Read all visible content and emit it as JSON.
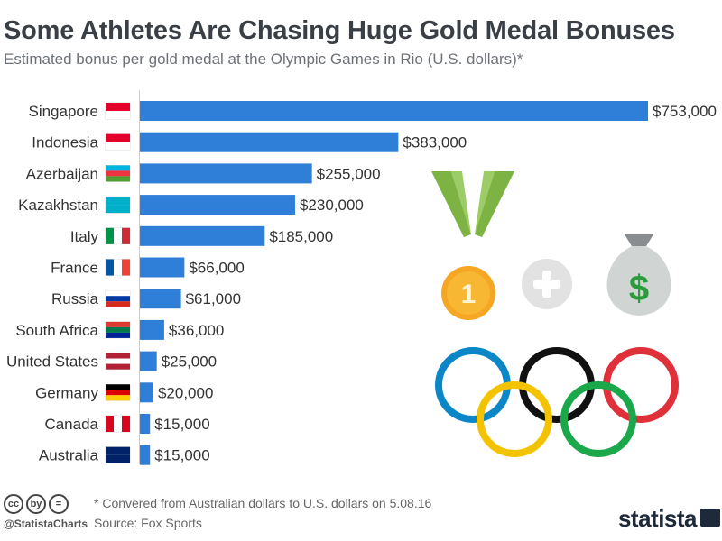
{
  "header": {
    "title": "Some Athletes Are Chasing Huge Gold Medal Bonuses",
    "subtitle": "Estimated bonus per gold medal at the Olympic Games in Rio (U.S. dollars)*"
  },
  "chart_data": {
    "type": "bar",
    "orientation": "horizontal",
    "categories": [
      "Singapore",
      "Indonesia",
      "Azerbaijan",
      "Kazakhstan",
      "Italy",
      "France",
      "Russia",
      "South Africa",
      "United States",
      "Germany",
      "Canada",
      "Australia"
    ],
    "values": [
      753000,
      383000,
      255000,
      230000,
      185000,
      66000,
      61000,
      36000,
      25000,
      20000,
      15000,
      15000
    ],
    "value_labels": [
      "$753,000",
      "$383,000",
      "$255,000",
      "$230,000",
      "$185,000",
      "$66,000",
      "$61,000",
      "$36,000",
      "$25,000",
      "$20,000",
      "$15,000",
      "$15,000"
    ],
    "bar_color": "#2f7ed8",
    "xlim": [
      0,
      753000
    ],
    "grid": false
  },
  "flags": [
    "singapore-flag-icon",
    "indonesia-flag-icon",
    "azerbaijan-flag-icon",
    "kazakhstan-flag-icon",
    "italy-flag-icon",
    "france-flag-icon",
    "russia-flag-icon",
    "south-africa-flag-icon",
    "united-states-flag-icon",
    "germany-flag-icon",
    "canada-flag-icon",
    "australia-flag-icon"
  ],
  "illustration": {
    "medal_number": "1",
    "money_symbol": "$",
    "icons": [
      "gold-medal-icon",
      "plus-icon",
      "money-bag-icon",
      "olympic-rings-icon"
    ],
    "ring_colors": [
      "#0b86c6",
      "#f4c300",
      "#111111",
      "#1aa84a",
      "#e0303a"
    ]
  },
  "footer": {
    "license_icons": [
      "cc",
      "by",
      "="
    ],
    "handle": "@StatistaCharts",
    "note": "* Convered from Australian dollars to U.S. dollars on 5.08.16",
    "source": "Source: Fox Sports",
    "brand": "statista"
  }
}
